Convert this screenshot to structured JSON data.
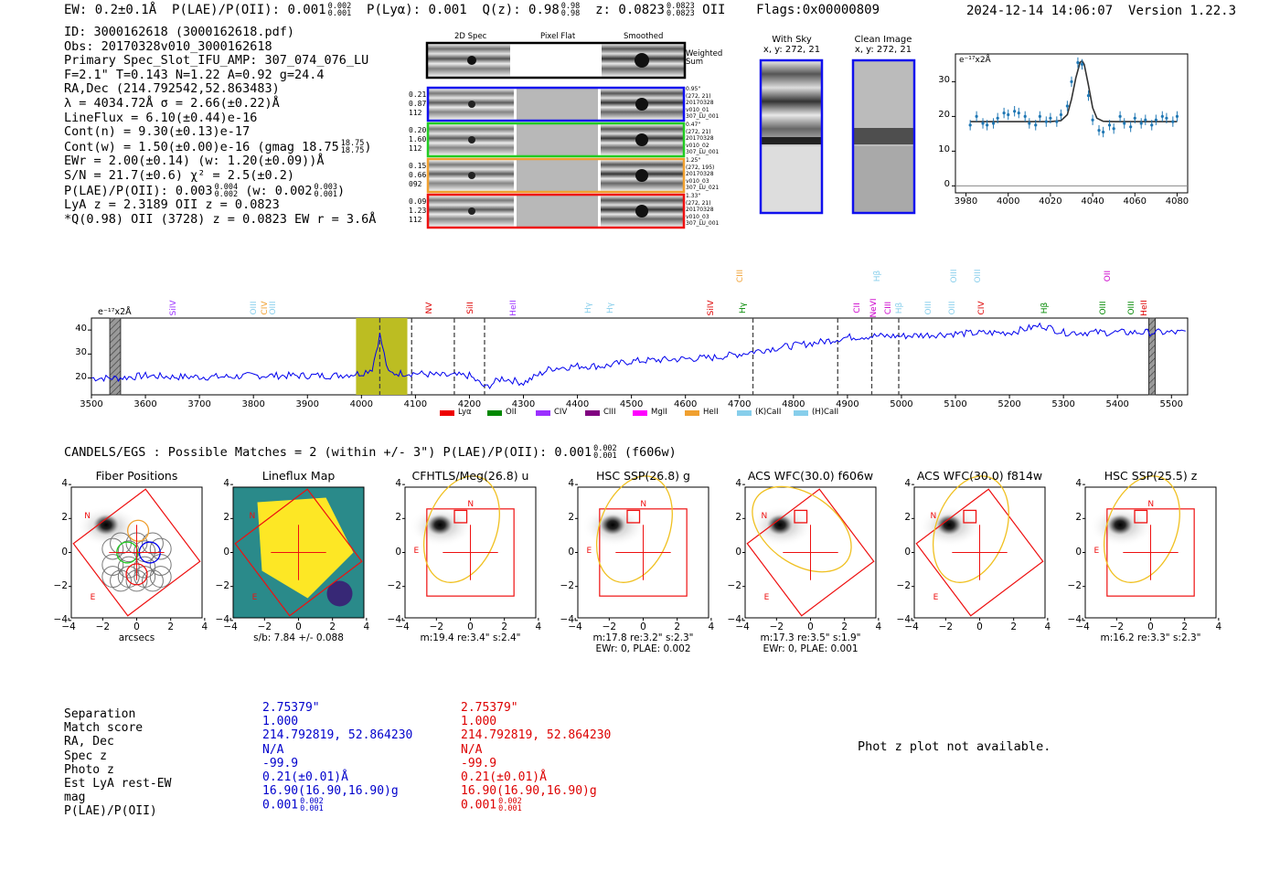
{
  "header": {
    "ew": "EW: 0.2±0.1Å",
    "plae_label": "P(LAE)/P(OII): 0.001",
    "plae_hi": "0.002",
    "plae_lo": "0.001",
    "plya": "P(Lyα): 0.001",
    "qz_label": "Q(z): 0.98",
    "qz_hi": "0.98",
    "qz_lo": "0.98",
    "z_label": "z: 0.0823",
    "z_hi": "0.0823",
    "z_lo": "0.0823",
    "z_line": "OII",
    "flags": "Flags:0x00000809",
    "datetime": "2024-12-14 14:06:07",
    "version": "Version 1.22.3"
  },
  "info": {
    "id": "ID: 3000162618 (3000162618.pdf)",
    "obs": "Obs: 20170328v010_3000162618",
    "primary": "Primary Spec_Slot_IFU_AMP: 307_074_076_LU",
    "fparams": "F=2.1\"  T=0.143  N=1.22  A=0.92  g=24.4",
    "radec": "RA,Dec (214.792542,52.863483)",
    "lambda": "λ = 4034.72Å  σ = 2.66(±0.22)Å",
    "lineflux": "LineFlux = 6.10(±0.44)e-16",
    "contn": "Cont(n) = 9.30(±0.13)e-17",
    "contw": "Cont(w) = 1.50(±0.00)e-16 (gmag 18.75",
    "contw_hi": "18.75",
    "contw_lo": "18.75",
    "ewr": "EWr = 2.00(±0.14) (w: 1.20(±0.09))Å",
    "sn": "S/N = 21.7(±0.6)  χ² = 2.5(±0.2)",
    "plae_a": "P(LAE)/P(OII): 0.003",
    "plae_a_hi": "0.004",
    "plae_a_lo": "0.002",
    "plae_w": "(w: 0.002",
    "plae_w_hi": "0.003",
    "plae_w_lo": "0.001",
    "lya": "LyA z = 2.3189  OII z = 0.0823",
    "q": "*Q(0.98) OII (3728) z = 0.0823  EW r = 3.6Å"
  },
  "cutouts": {
    "col_2d": "2D Spec",
    "col_flat": "Pixel Flat",
    "col_smooth": "Smoothed",
    "weighted": [
      "Weighted",
      "Sum"
    ],
    "rows": [
      {
        "left": [
          "0.21",
          "0.87",
          "112"
        ],
        "right": [
          "0.95\"",
          "(272, 21)",
          "20170328",
          "v010_01",
          "307_LU_001"
        ],
        "color": "#1010ee"
      },
      {
        "left": [
          "0.20",
          "1.60",
          "112"
        ],
        "right": [
          "0.47\"",
          "(272, 21)",
          "20170328",
          "v010_02",
          "307_LU_001"
        ],
        "color": "#22cc22"
      },
      {
        "left": [
          "0.15",
          "0.66",
          "092"
        ],
        "right": [
          "1.25\"",
          "(272, 195)",
          "20170328",
          "v010_03",
          "307_LU_021"
        ],
        "color": "#f0a030"
      },
      {
        "left": [
          "0.09",
          "1.23",
          "112"
        ],
        "right": [
          "1.33\"",
          "(272, 21)",
          "20170328",
          "v010_03",
          "307_LU_001"
        ],
        "color": "#ee1010"
      }
    ]
  },
  "sky": {
    "with_title": "With Sky",
    "with_xy": "x, y: 272, 21",
    "clean_title": "Clean Image",
    "clean_xy": "x, y: 272, 21"
  },
  "zoom_plot": {
    "unit": "e⁻¹⁷x2Å",
    "xticks": [
      "3980",
      "4000",
      "4020",
      "4040",
      "4060",
      "4080"
    ],
    "yticks": [
      "0",
      "10",
      "20",
      "30"
    ]
  },
  "full_spec": {
    "unit": "e⁻¹⁷x2Å",
    "xticks": [
      "3500",
      "3600",
      "3700",
      "3800",
      "3900",
      "4000",
      "4100",
      "4200",
      "4300",
      "4400",
      "4500",
      "4600",
      "4700",
      "4800",
      "4900",
      "5000",
      "5100",
      "5200",
      "5300",
      "5400",
      "5500"
    ],
    "yticks": [
      "20",
      "30",
      "40"
    ],
    "lines": [
      {
        "label": "SiIV",
        "color": "#9b30ff"
      },
      {
        "label": "OIII",
        "color": "#87ceeb"
      },
      {
        "label": "CIV",
        "color": "#f0a030"
      },
      {
        "label": "OIII",
        "color": "#87ceeb"
      },
      {
        "label": "NV",
        "color": "#dd0000"
      },
      {
        "label": "SiII",
        "color": "#dd0000"
      },
      {
        "label": "HeII",
        "color": "#9b30ff"
      },
      {
        "label": "Hγ",
        "color": "#87ceeb"
      },
      {
        "label": "Hγ",
        "color": "#87ceeb"
      },
      {
        "label": "SiIV",
        "color": "#dd0000"
      },
      {
        "label": "CIII",
        "color": "#f0a030"
      },
      {
        "label": "Hγ",
        "color": "#008800"
      },
      {
        "label": "CII",
        "color": "#cc00cc"
      },
      {
        "label": "NeVI",
        "color": "#cc00cc"
      },
      {
        "label": "Hβ",
        "color": "#87ceeb"
      },
      {
        "label": "CIII",
        "color": "#cc00cc"
      },
      {
        "label": "Hβ",
        "color": "#87ceeb"
      },
      {
        "label": "OIII",
        "color": "#87ceeb"
      },
      {
        "label": "OIII",
        "color": "#87ceeb"
      },
      {
        "label": "OIII",
        "color": "#87ceeb"
      },
      {
        "label": "OIII",
        "color": "#87ceeb"
      },
      {
        "label": "CIV",
        "color": "#dd0000"
      },
      {
        "label": "Hβ",
        "color": "#008800"
      },
      {
        "label": "OIII",
        "color": "#008800"
      },
      {
        "label": "OII",
        "color": "#cc00cc"
      },
      {
        "label": "OIII",
        "color": "#008800"
      },
      {
        "label": "HeII",
        "color": "#dd0000"
      }
    ],
    "legend": [
      {
        "label": "Lyα",
        "color": "#ee0000"
      },
      {
        "label": "OII",
        "color": "#008800"
      },
      {
        "label": "CIV",
        "color": "#9b30ff"
      },
      {
        "label": "CIII",
        "color": "#800080"
      },
      {
        "label": "MgII",
        "color": "#ff00ff"
      },
      {
        "label": "HeII",
        "color": "#f0a030"
      },
      {
        "label": "(K)CaII",
        "color": "#87ceeb"
      },
      {
        "label": "(H)CaII",
        "color": "#87ceeb"
      }
    ]
  },
  "matches_title": "CANDELS/EGS : Possible Matches = 2 (within +/- 3\")  P(LAE)/P(OII): 0.001",
  "matches_plae_hi": "0.002",
  "matches_plae_lo": "0.001",
  "matches_filter": "(f606w)",
  "panels": [
    {
      "title": "Fiber Positions",
      "caption1": "arcsecs",
      "caption2": ""
    },
    {
      "title": "Lineflux Map",
      "caption1": "s/b: 7.84 +/- 0.088",
      "caption2": ""
    },
    {
      "title": "CFHTLS/Meg(26.8) u",
      "caption1": "m:19.4  re:3.4\"  s:2.4\"",
      "caption2": ""
    },
    {
      "title": "HSC SSP(26.8) g",
      "caption1": "m:17.8  re:3.2\"  s:2.3\"",
      "caption2": "EWr: 0, PLAE: 0.002"
    },
    {
      "title": "ACS WFC(30.0) f606w",
      "caption1": "m:17.3  re:3.5\"  s:1.9\"",
      "caption2": "EWr: 0, PLAE: 0.001"
    },
    {
      "title": "ACS WFC(30.0) f814w",
      "caption1": "",
      "caption2": ""
    },
    {
      "title": "HSC SSP(25.5) z",
      "caption1": "m:16.2  re:3.3\"  s:2.3\"",
      "caption2": ""
    }
  ],
  "panel_axis": {
    "ticks": [
      "−4",
      "−2",
      "0",
      "2",
      "4"
    ],
    "n": "N",
    "e": "E"
  },
  "table": {
    "labels": [
      "Separation",
      "Match score",
      "RA, Dec",
      "Spec z",
      "Photo z",
      "Est LyA rest-EW",
      "mag",
      "P(LAE)/P(OII)"
    ],
    "col1": [
      "2.75379\"",
      "1.000",
      "214.792819, 52.864230",
      "N/A",
      "-99.9",
      "0.21(±0.01)Å",
      "16.90(16.90,16.90)g",
      "0.001"
    ],
    "col1_hi": "0.002",
    "col1_lo": "0.001",
    "col2": [
      "2.75379\"",
      "1.000",
      "214.792819, 52.864230",
      "N/A",
      "-99.9",
      "0.21(±0.01)Å",
      "16.90(16.90,16.90)g",
      "0.001"
    ],
    "col2_hi": "0.002",
    "col2_lo": "0.001"
  },
  "photz_msg": "Phot z plot not available.",
  "chart_data": [
    {
      "type": "line",
      "title": "",
      "xlabel": "",
      "ylabel": "e-17x2Å",
      "xlim": [
        3975,
        4085
      ],
      "ylim": [
        -2,
        38
      ],
      "series": [
        {
          "name": "data",
          "x": [
            3982,
            3985,
            3988,
            3990,
            3993,
            3995,
            3998,
            4000,
            4003,
            4005,
            4008,
            4010,
            4013,
            4015,
            4018,
            4020,
            4023,
            4025,
            4028,
            4030,
            4033,
            4035,
            4038,
            4040,
            4043,
            4045,
            4048,
            4050,
            4053,
            4055,
            4058,
            4060,
            4063,
            4065,
            4068,
            4070,
            4073,
            4075,
            4078,
            4080
          ],
          "y": [
            17.5,
            20,
            18,
            17.5,
            18,
            19.5,
            21,
            20.5,
            21.5,
            21,
            20,
            18,
            17.5,
            20,
            18.5,
            19.5,
            18.5,
            20.5,
            23,
            30,
            35.5,
            35,
            26,
            19,
            16,
            15.5,
            17.5,
            16.5,
            20,
            18,
            17,
            19.5,
            18,
            19,
            17.5,
            19,
            20,
            19.5,
            18.5,
            20
          ]
        },
        {
          "name": "fit",
          "x": [
            3982,
            4000,
            4020,
            4025,
            4028,
            4030,
            4032,
            4034,
            4035,
            4036,
            4038,
            4040,
            4042,
            4045,
            4050,
            4080
          ],
          "y": [
            18.5,
            18.5,
            18.5,
            18.8,
            20.5,
            25,
            31,
            35.5,
            36,
            35,
            29,
            22.5,
            19.5,
            18.6,
            18.5,
            18.5
          ]
        }
      ]
    },
    {
      "type": "line",
      "title": "",
      "xlabel": "",
      "ylabel": "e-17x2Å",
      "xlim": [
        3500,
        5530
      ],
      "ylim": [
        13,
        45
      ],
      "highlight": [
        3990,
        4085
      ],
      "dashed_lines": [
        4034,
        4093,
        4172,
        4228,
        4725,
        4882,
        4945,
        4995
      ],
      "masked": [
        [
          3534,
          3554
        ],
        [
          5458,
          5470
        ]
      ],
      "series": [
        {
          "name": "spectrum",
          "x": [
            3500,
            3550,
            3600,
            3650,
            3700,
            3750,
            3800,
            3850,
            3900,
            3950,
            4000,
            4020,
            4034,
            4050,
            4080,
            4100,
            4150,
            4200,
            4230,
            4260,
            4300,
            4350,
            4400,
            4450,
            4500,
            4550,
            4600,
            4650,
            4700,
            4750,
            4800,
            4850,
            4900,
            4950,
            5000,
            5100,
            5200,
            5260,
            5300,
            5400,
            5500,
            5530
          ],
          "y": [
            20,
            20,
            21,
            20.5,
            20.5,
            20.5,
            21,
            21,
            21,
            21,
            22,
            24,
            38,
            22,
            22,
            22,
            21,
            21,
            16,
            20,
            18,
            24,
            25,
            25,
            27,
            27.5,
            28,
            28.5,
            30,
            32,
            33.5,
            35,
            37,
            37.5,
            37.5,
            38.5,
            39,
            42,
            39,
            39,
            39,
            39
          ]
        }
      ]
    }
  ]
}
